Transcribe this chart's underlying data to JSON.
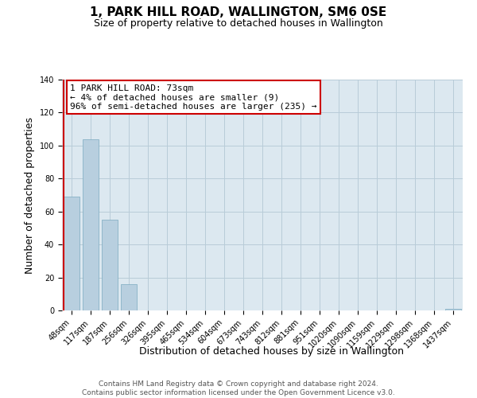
{
  "title": "1, PARK HILL ROAD, WALLINGTON, SM6 0SE",
  "subtitle": "Size of property relative to detached houses in Wallington",
  "xlabel": "Distribution of detached houses by size in Wallington",
  "ylabel": "Number of detached properties",
  "bar_labels": [
    "48sqm",
    "117sqm",
    "187sqm",
    "256sqm",
    "326sqm",
    "395sqm",
    "465sqm",
    "534sqm",
    "604sqm",
    "673sqm",
    "743sqm",
    "812sqm",
    "881sqm",
    "951sqm",
    "1020sqm",
    "1090sqm",
    "1159sqm",
    "1229sqm",
    "1298sqm",
    "1368sqm",
    "1437sqm"
  ],
  "bar_values": [
    69,
    104,
    55,
    16,
    0,
    0,
    0,
    0,
    0,
    0,
    0,
    0,
    0,
    0,
    0,
    0,
    0,
    0,
    0,
    0,
    1
  ],
  "bar_color": "#b8cfdf",
  "bar_edge_color": "#7aaabf",
  "ylim": [
    0,
    140
  ],
  "yticks": [
    0,
    20,
    40,
    60,
    80,
    100,
    120,
    140
  ],
  "annotation_box_text": "1 PARK HILL ROAD: 73sqm\n← 4% of detached houses are smaller (9)\n96% of semi-detached houses are larger (235) →",
  "annotation_box_color": "#ffffff",
  "annotation_box_edge_color": "#cc0000",
  "red_line_color": "#cc0000",
  "footer_line1": "Contains HM Land Registry data © Crown copyright and database right 2024.",
  "footer_line2": "Contains public sector information licensed under the Open Government Licence v3.0.",
  "background_color": "#ffffff",
  "plot_bg_color": "#dce8f0",
  "grid_color": "#b8ccd8",
  "title_fontsize": 11,
  "subtitle_fontsize": 9,
  "axis_label_fontsize": 9,
  "tick_fontsize": 7,
  "annotation_fontsize": 8,
  "footer_fontsize": 6.5
}
